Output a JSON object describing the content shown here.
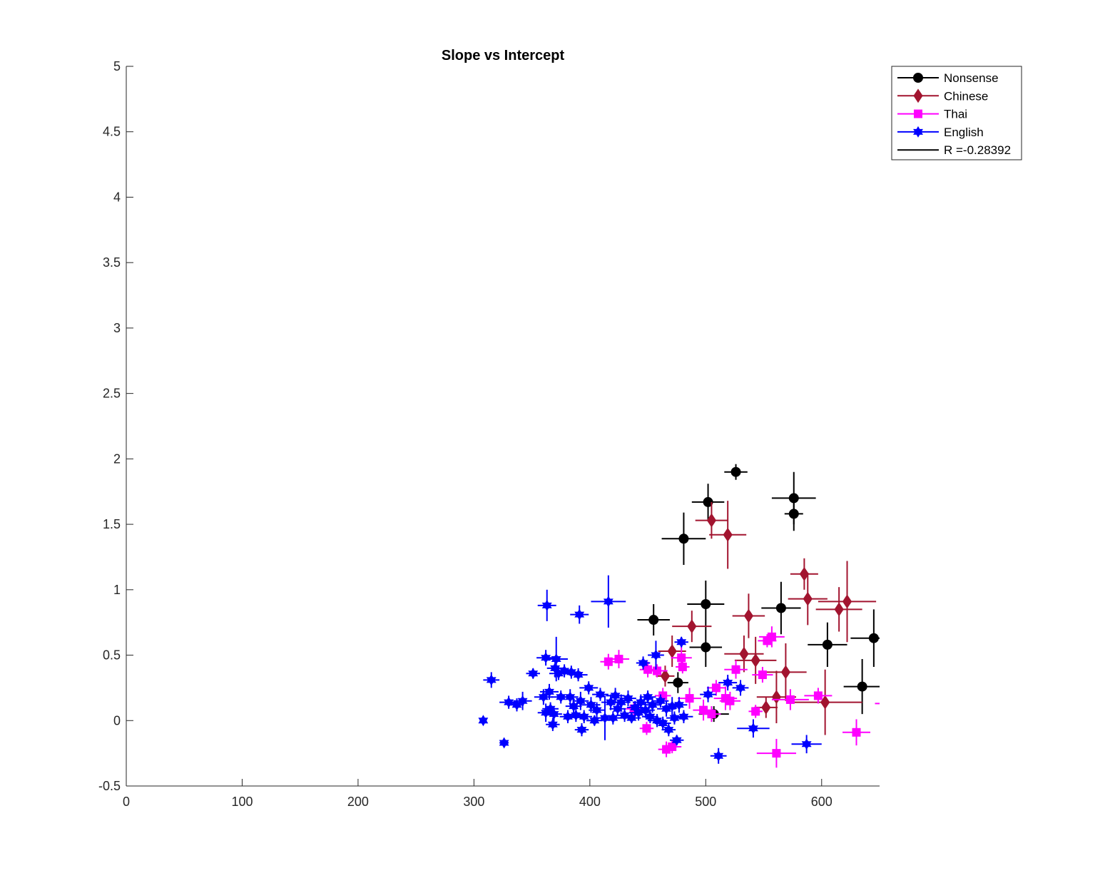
{
  "chart_data": {
    "type": "scatter",
    "title": "Slope vs Intercept",
    "xlabel": "",
    "ylabel": "",
    "xlim": [
      0,
      650
    ],
    "ylim": [
      -0.5,
      5
    ],
    "xticks": [
      "0",
      "100",
      "200",
      "300",
      "400",
      "500",
      "600"
    ],
    "xtick_values": [
      0,
      100,
      200,
      300,
      400,
      500,
      600
    ],
    "yticks": [
      "-0.5",
      "0",
      "0.5",
      "1",
      "1.5",
      "2",
      "2.5",
      "3",
      "3.5",
      "4",
      "4.5",
      "5"
    ],
    "ytick_values": [
      -0.5,
      0,
      0.5,
      1,
      1.5,
      2,
      2.5,
      3,
      3.5,
      4,
      4.5,
      5
    ],
    "grid": false,
    "legend_position": "top-right",
    "series": [
      {
        "name": "Nonsense",
        "color": "#000000",
        "marker": "circle",
        "points": [
          {
            "x": 526,
            "y": 1.9,
            "ex": 10,
            "ey": 0.06
          },
          {
            "x": 576,
            "y": 1.7,
            "ex": 19,
            "ey": 0.2
          },
          {
            "x": 576,
            "y": 1.58,
            "ex": 8,
            "ey": 0.13
          },
          {
            "x": 502,
            "y": 1.67,
            "ex": 14,
            "ey": 0.14
          },
          {
            "x": 481,
            "y": 1.39,
            "ex": 19,
            "ey": 0.2
          },
          {
            "x": 500,
            "y": 0.89,
            "ex": 16,
            "ey": 0.18
          },
          {
            "x": 565,
            "y": 0.86,
            "ex": 17,
            "ey": 0.2
          },
          {
            "x": 455,
            "y": 0.77,
            "ex": 14,
            "ey": 0.12
          },
          {
            "x": 500,
            "y": 0.56,
            "ex": 14,
            "ey": 0.15
          },
          {
            "x": 605,
            "y": 0.58,
            "ex": 17,
            "ey": 0.17
          },
          {
            "x": 645,
            "y": 0.63,
            "ex": 20,
            "ey": 0.22
          },
          {
            "x": 476,
            "y": 0.29,
            "ex": 9,
            "ey": 0.08
          },
          {
            "x": 635,
            "y": 0.26,
            "ex": 16,
            "ey": 0.21
          },
          {
            "x": 507,
            "y": 0.05,
            "ex": 13,
            "ey": 0.06
          }
        ]
      },
      {
        "name": "Chinese",
        "color": "#a2142f",
        "marker": "diamond",
        "points": [
          {
            "x": 505,
            "y": 1.53,
            "ex": 14,
            "ey": 0.14
          },
          {
            "x": 519,
            "y": 1.42,
            "ex": 16,
            "ey": 0.26
          },
          {
            "x": 585,
            "y": 1.12,
            "ex": 12,
            "ey": 0.12
          },
          {
            "x": 588,
            "y": 0.93,
            "ex": 17,
            "ey": 0.2
          },
          {
            "x": 615,
            "y": 0.85,
            "ex": 20,
            "ey": 0.17
          },
          {
            "x": 622,
            "y": 0.91,
            "ex": 25,
            "ey": 0.31
          },
          {
            "x": 537,
            "y": 0.8,
            "ex": 14,
            "ey": 0.17
          },
          {
            "x": 488,
            "y": 0.72,
            "ex": 17,
            "ey": 0.12
          },
          {
            "x": 471,
            "y": 0.53,
            "ex": 12,
            "ey": 0.12
          },
          {
            "x": 533,
            "y": 0.51,
            "ex": 17,
            "ey": 0.14
          },
          {
            "x": 543,
            "y": 0.46,
            "ex": 18,
            "ey": 0.18
          },
          {
            "x": 465,
            "y": 0.34,
            "ex": 8,
            "ey": 0.08
          },
          {
            "x": 569,
            "y": 0.37,
            "ex": 18,
            "ey": 0.22
          },
          {
            "x": 561,
            "y": 0.18,
            "ex": 17,
            "ey": 0.2
          },
          {
            "x": 552,
            "y": 0.1,
            "ex": 10,
            "ey": 0.08
          },
          {
            "x": 603,
            "y": 0.14,
            "ex": 32,
            "ey": 0.25
          }
        ]
      },
      {
        "name": "Thai",
        "color": "#ff00ff",
        "marker": "square",
        "points": [
          {
            "x": 557,
            "y": 0.64,
            "ex": 11,
            "ey": 0.08
          },
          {
            "x": 553,
            "y": 0.61,
            "ex": 8,
            "ey": 0.05
          },
          {
            "x": 416,
            "y": 0.45,
            "ex": 7,
            "ey": 0.06
          },
          {
            "x": 425,
            "y": 0.47,
            "ex": 9,
            "ey": 0.07
          },
          {
            "x": 479,
            "y": 0.48,
            "ex": 9,
            "ey": 0.08
          },
          {
            "x": 480,
            "y": 0.41,
            "ex": 6,
            "ey": 0.05
          },
          {
            "x": 450,
            "y": 0.39,
            "ex": 7,
            "ey": 0.06
          },
          {
            "x": 458,
            "y": 0.38,
            "ex": 9,
            "ey": 0.05
          },
          {
            "x": 526,
            "y": 0.39,
            "ex": 10,
            "ey": 0.07
          },
          {
            "x": 549,
            "y": 0.35,
            "ex": 9,
            "ey": 0.06
          },
          {
            "x": 486,
            "y": 0.17,
            "ex": 10,
            "ey": 0.08
          },
          {
            "x": 517,
            "y": 0.17,
            "ex": 10,
            "ey": 0.09
          },
          {
            "x": 521,
            "y": 0.15,
            "ex": 9,
            "ey": 0.07
          },
          {
            "x": 573,
            "y": 0.16,
            "ex": 16,
            "ey": 0.08
          },
          {
            "x": 597,
            "y": 0.19,
            "ex": 12,
            "ey": 0.06
          },
          {
            "x": 498,
            "y": 0.08,
            "ex": 9,
            "ey": 0.08
          },
          {
            "x": 505,
            "y": 0.05,
            "ex": 8,
            "ey": 0.06
          },
          {
            "x": 543,
            "y": 0.07,
            "ex": 6,
            "ey": 0.05
          },
          {
            "x": 438,
            "y": 0.09,
            "ex": 7,
            "ey": 0.05
          },
          {
            "x": 449,
            "y": -0.06,
            "ex": 6,
            "ey": 0.05
          },
          {
            "x": 466,
            "y": -0.22,
            "ex": 7,
            "ey": 0.06
          },
          {
            "x": 471,
            "y": -0.2,
            "ex": 8,
            "ey": 0.05
          },
          {
            "x": 561,
            "y": -0.25,
            "ex": 17,
            "ey": 0.11
          },
          {
            "x": 630,
            "y": -0.09,
            "ex": 12,
            "ey": 0.1
          },
          {
            "x": 660,
            "y": 0.13,
            "ex": 14,
            "ey": 0.06
          },
          {
            "x": 509,
            "y": 0.25,
            "ex": 8,
            "ey": 0.06
          },
          {
            "x": 463,
            "y": 0.19,
            "ex": 7,
            "ey": 0.06
          }
        ]
      },
      {
        "name": "English",
        "color": "#0000ff",
        "marker": "hexagram",
        "points": [
          {
            "x": 308,
            "y": 0.0,
            "ex": 3,
            "ey": 0.03
          },
          {
            "x": 315,
            "y": 0.31,
            "ex": 7,
            "ey": 0.06
          },
          {
            "x": 326,
            "y": -0.17,
            "ex": 4,
            "ey": 0.03
          },
          {
            "x": 330,
            "y": 0.14,
            "ex": 8,
            "ey": 0.05
          },
          {
            "x": 337,
            "y": 0.12,
            "ex": 6,
            "ey": 0.05
          },
          {
            "x": 342,
            "y": 0.15,
            "ex": 8,
            "ey": 0.07
          },
          {
            "x": 351,
            "y": 0.36,
            "ex": 6,
            "ey": 0.04
          },
          {
            "x": 360,
            "y": 0.18,
            "ex": 8,
            "ey": 0.06
          },
          {
            "x": 362,
            "y": 0.48,
            "ex": 8,
            "ey": 0.06
          },
          {
            "x": 363,
            "y": 0.88,
            "ex": 8,
            "ey": 0.12
          },
          {
            "x": 362,
            "y": 0.06,
            "ex": 7,
            "ey": 0.07
          },
          {
            "x": 365,
            "y": 0.22,
            "ex": 8,
            "ey": 0.06
          },
          {
            "x": 366,
            "y": 0.09,
            "ex": 7,
            "ey": 0.05
          },
          {
            "x": 368,
            "y": -0.03,
            "ex": 6,
            "ey": 0.05
          },
          {
            "x": 369,
            "y": 0.05,
            "ex": 7,
            "ey": 0.06
          },
          {
            "x": 370,
            "y": 0.4,
            "ex": 7,
            "ey": 0.07
          },
          {
            "x": 371,
            "y": 0.47,
            "ex": 10,
            "ey": 0.17
          },
          {
            "x": 373,
            "y": 0.36,
            "ex": 8,
            "ey": 0.05
          },
          {
            "x": 375,
            "y": 0.18,
            "ex": 8,
            "ey": 0.05
          },
          {
            "x": 378,
            "y": 0.38,
            "ex": 7,
            "ey": 0.05
          },
          {
            "x": 381,
            "y": 0.03,
            "ex": 7,
            "ey": 0.05
          },
          {
            "x": 383,
            "y": 0.18,
            "ex": 7,
            "ey": 0.06
          },
          {
            "x": 384,
            "y": 0.37,
            "ex": 8,
            "ey": 0.05
          },
          {
            "x": 386,
            "y": 0.11,
            "ex": 7,
            "ey": 0.06
          },
          {
            "x": 388,
            "y": 0.04,
            "ex": 7,
            "ey": 0.05
          },
          {
            "x": 390,
            "y": 0.35,
            "ex": 8,
            "ey": 0.05
          },
          {
            "x": 391,
            "y": 0.81,
            "ex": 8,
            "ey": 0.07
          },
          {
            "x": 392,
            "y": 0.15,
            "ex": 7,
            "ey": 0.07
          },
          {
            "x": 393,
            "y": -0.07,
            "ex": 6,
            "ey": 0.05
          },
          {
            "x": 395,
            "y": 0.03,
            "ex": 7,
            "ey": 0.05
          },
          {
            "x": 399,
            "y": 0.25,
            "ex": 8,
            "ey": 0.05
          },
          {
            "x": 401,
            "y": 0.12,
            "ex": 8,
            "ey": 0.06
          },
          {
            "x": 404,
            "y": 0.0,
            "ex": 7,
            "ey": 0.04
          },
          {
            "x": 406,
            "y": 0.08,
            "ex": 7,
            "ey": 0.06
          },
          {
            "x": 409,
            "y": 0.2,
            "ex": 7,
            "ey": 0.05
          },
          {
            "x": 413,
            "y": 0.02,
            "ex": 10,
            "ey": 0.17
          },
          {
            "x": 416,
            "y": 0.91,
            "ex": 15,
            "ey": 0.2
          },
          {
            "x": 418,
            "y": 0.14,
            "ex": 8,
            "ey": 0.06
          },
          {
            "x": 420,
            "y": 0.02,
            "ex": 8,
            "ey": 0.05
          },
          {
            "x": 422,
            "y": 0.19,
            "ex": 8,
            "ey": 0.06
          },
          {
            "x": 424,
            "y": 0.09,
            "ex": 7,
            "ey": 0.05
          },
          {
            "x": 427,
            "y": 0.14,
            "ex": 8,
            "ey": 0.06
          },
          {
            "x": 430,
            "y": 0.04,
            "ex": 7,
            "ey": 0.05
          },
          {
            "x": 433,
            "y": 0.17,
            "ex": 7,
            "ey": 0.06
          },
          {
            "x": 436,
            "y": 0.02,
            "ex": 8,
            "ey": 0.04
          },
          {
            "x": 439,
            "y": 0.1,
            "ex": 7,
            "ey": 0.05
          },
          {
            "x": 442,
            "y": 0.06,
            "ex": 8,
            "ey": 0.06
          },
          {
            "x": 444,
            "y": 0.14,
            "ex": 7,
            "ey": 0.06
          },
          {
            "x": 446,
            "y": 0.44,
            "ex": 6,
            "ey": 0.05
          },
          {
            "x": 448,
            "y": 0.08,
            "ex": 8,
            "ey": 0.06
          },
          {
            "x": 450,
            "y": 0.18,
            "ex": 7,
            "ey": 0.05
          },
          {
            "x": 452,
            "y": 0.03,
            "ex": 7,
            "ey": 0.05
          },
          {
            "x": 454,
            "y": 0.12,
            "ex": 7,
            "ey": 0.06
          },
          {
            "x": 457,
            "y": 0.5,
            "ex": 7,
            "ey": 0.11
          },
          {
            "x": 458,
            "y": 0.0,
            "ex": 8,
            "ey": 0.05
          },
          {
            "x": 461,
            "y": 0.15,
            "ex": 7,
            "ey": 0.05
          },
          {
            "x": 463,
            "y": -0.02,
            "ex": 7,
            "ey": 0.05
          },
          {
            "x": 466,
            "y": 0.09,
            "ex": 8,
            "ey": 0.06
          },
          {
            "x": 468,
            "y": -0.07,
            "ex": 6,
            "ey": 0.05
          },
          {
            "x": 471,
            "y": 0.11,
            "ex": 7,
            "ey": 0.07
          },
          {
            "x": 473,
            "y": 0.02,
            "ex": 7,
            "ey": 0.05
          },
          {
            "x": 475,
            "y": -0.15,
            "ex": 6,
            "ey": 0.04
          },
          {
            "x": 477,
            "y": 0.12,
            "ex": 7,
            "ey": 0.06
          },
          {
            "x": 479,
            "y": 0.6,
            "ex": 6,
            "ey": 0.04
          },
          {
            "x": 481,
            "y": 0.03,
            "ex": 8,
            "ey": 0.05
          },
          {
            "x": 502,
            "y": 0.2,
            "ex": 7,
            "ey": 0.06
          },
          {
            "x": 511,
            "y": -0.27,
            "ex": 7,
            "ey": 0.06
          },
          {
            "x": 519,
            "y": 0.29,
            "ex": 8,
            "ey": 0.06
          },
          {
            "x": 530,
            "y": 0.25,
            "ex": 7,
            "ey": 0.06
          },
          {
            "x": 541,
            "y": -0.06,
            "ex": 14,
            "ey": 0.07
          },
          {
            "x": 587,
            "y": -0.18,
            "ex": 13,
            "ey": 0.07
          }
        ]
      }
    ],
    "fit_line": {
      "name": "R =-0.28392",
      "color": "#000000"
    }
  }
}
